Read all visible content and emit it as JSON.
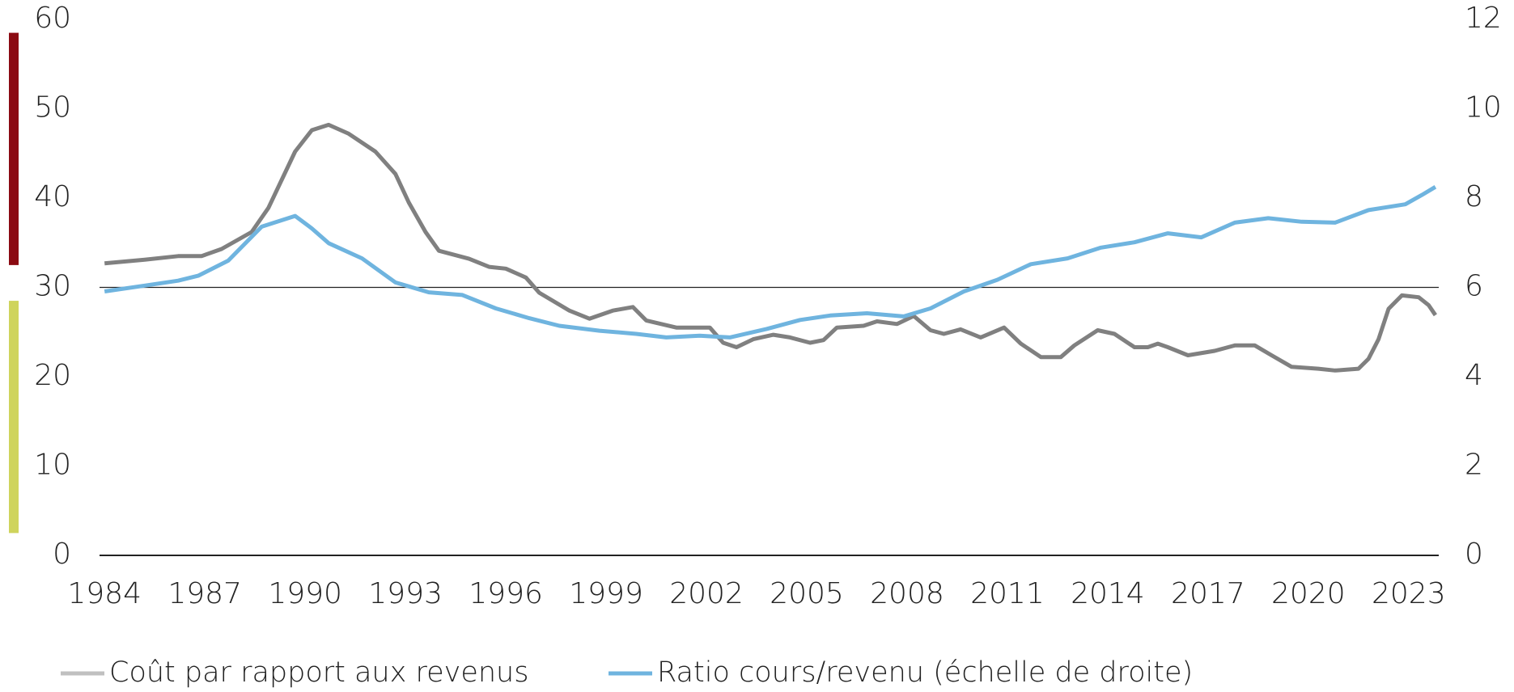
{
  "chart_data": {
    "type": "line",
    "xlim": [
      1983.85,
      2023.9
    ],
    "xticks": [
      1984,
      1987,
      1990,
      1993,
      1996,
      1999,
      2002,
      2005,
      2008,
      2011,
      2014,
      2017,
      2020,
      2023
    ],
    "ylim": [
      0,
      60
    ],
    "yticks": [
      0,
      10,
      20,
      30,
      40,
      50,
      60
    ],
    "y2lim": [
      0,
      12
    ],
    "y2ticks": [
      0,
      2,
      4,
      6,
      8,
      10,
      12
    ],
    "reference_line": 30,
    "bands": [
      {
        "from": 32.5,
        "to": 58.5,
        "color": "#8b0a12"
      },
      {
        "from": 2.5,
        "to": 28.5,
        "color": "#cfd45c"
      }
    ],
    "series": [
      {
        "name": "Coût par rapport aux revenus",
        "color": "#808080",
        "legend_color": "#c0c0c0",
        "x": [
          1984,
          1985.2,
          1986.2,
          1986.9,
          1987.5,
          1988.4,
          1988.9,
          1989.7,
          1990.2,
          1990.7,
          1991.3,
          1992.1,
          1992.7,
          1993.1,
          1993.6,
          1994.0,
          1994.9,
          1995.5,
          1996.0,
          1996.6,
          1997.0,
          1997.9,
          1998.5,
          1999.2,
          1999.8,
          2000.2,
          2001.1,
          2002.1,
          2002.5,
          2002.9,
          2003.4,
          2004.0,
          2004.5,
          2005.1,
          2005.5,
          2005.9,
          2006.7,
          2007.1,
          2007.7,
          2008.2,
          2008.7,
          2009.1,
          2009.6,
          2010.2,
          2010.9,
          2011.4,
          2012.0,
          2012.6,
          2013.0,
          2013.7,
          2014.2,
          2014.8,
          2015.2,
          2015.5,
          2015.8,
          2016.4,
          2017.2,
          2017.8,
          2018.4,
          2018.9,
          2019.5,
          2020.3,
          2020.8,
          2021.5,
          2021.8,
          2022.1,
          2022.4,
          2022.8,
          2023.3,
          2023.6,
          2023.8
        ],
        "values": [
          32.7,
          33.1,
          33.5,
          33.5,
          34.3,
          36.2,
          38.9,
          45.2,
          47.6,
          48.2,
          47.2,
          45.2,
          42.7,
          39.5,
          36.2,
          34.1,
          33.2,
          32.3,
          32.1,
          31.1,
          29.4,
          27.4,
          26.5,
          27.4,
          27.8,
          26.3,
          25.5,
          25.5,
          23.8,
          23.3,
          24.2,
          24.7,
          24.4,
          23.8,
          24.1,
          25.5,
          25.7,
          26.2,
          25.9,
          26.8,
          25.2,
          24.8,
          25.3,
          24.4,
          25.5,
          23.7,
          22.2,
          22.2,
          23.5,
          25.2,
          24.8,
          23.3,
          23.3,
          23.7,
          23.3,
          22.4,
          22.9,
          23.5,
          23.5,
          22.4,
          21.1,
          20.9,
          20.7,
          20.9,
          22.0,
          24.2,
          27.6,
          29.1,
          28.9,
          28.0,
          26.9
        ]
      },
      {
        "name": "Ratio cours/revenu (échelle de droite)",
        "color": "#6fb4df",
        "axis": "y2",
        "x": [
          1984,
          1985.2,
          1986.2,
          1986.8,
          1987.7,
          1988.7,
          1989.7,
          1990.2,
          1990.7,
          1991.7,
          1992.7,
          1993.7,
          1994.7,
          1995.7,
          1996.7,
          1997.6,
          1998.8,
          1999.9,
          2000.8,
          2001.8,
          2002.7,
          2003.8,
          2004.8,
          2005.7,
          2006.8,
          2007.9,
          2008.7,
          2009.7,
          2010.7,
          2011.7,
          2012.8,
          2013.8,
          2014.8,
          2015.8,
          2016.8,
          2017.8,
          2018.8,
          2019.8,
          2020.8,
          2021.8,
          2022.9,
          2023.4,
          2023.8
        ],
        "values": [
          5.91,
          6.04,
          6.15,
          6.26,
          6.6,
          7.36,
          7.6,
          7.32,
          6.99,
          6.65,
          6.11,
          5.89,
          5.83,
          5.53,
          5.31,
          5.14,
          5.03,
          4.96,
          4.88,
          4.92,
          4.88,
          5.07,
          5.27,
          5.37,
          5.42,
          5.35,
          5.53,
          5.91,
          6.17,
          6.52,
          6.65,
          6.89,
          7.01,
          7.21,
          7.12,
          7.45,
          7.55,
          7.47,
          7.45,
          7.73,
          7.86,
          8.07,
          8.25
        ]
      }
    ]
  }
}
